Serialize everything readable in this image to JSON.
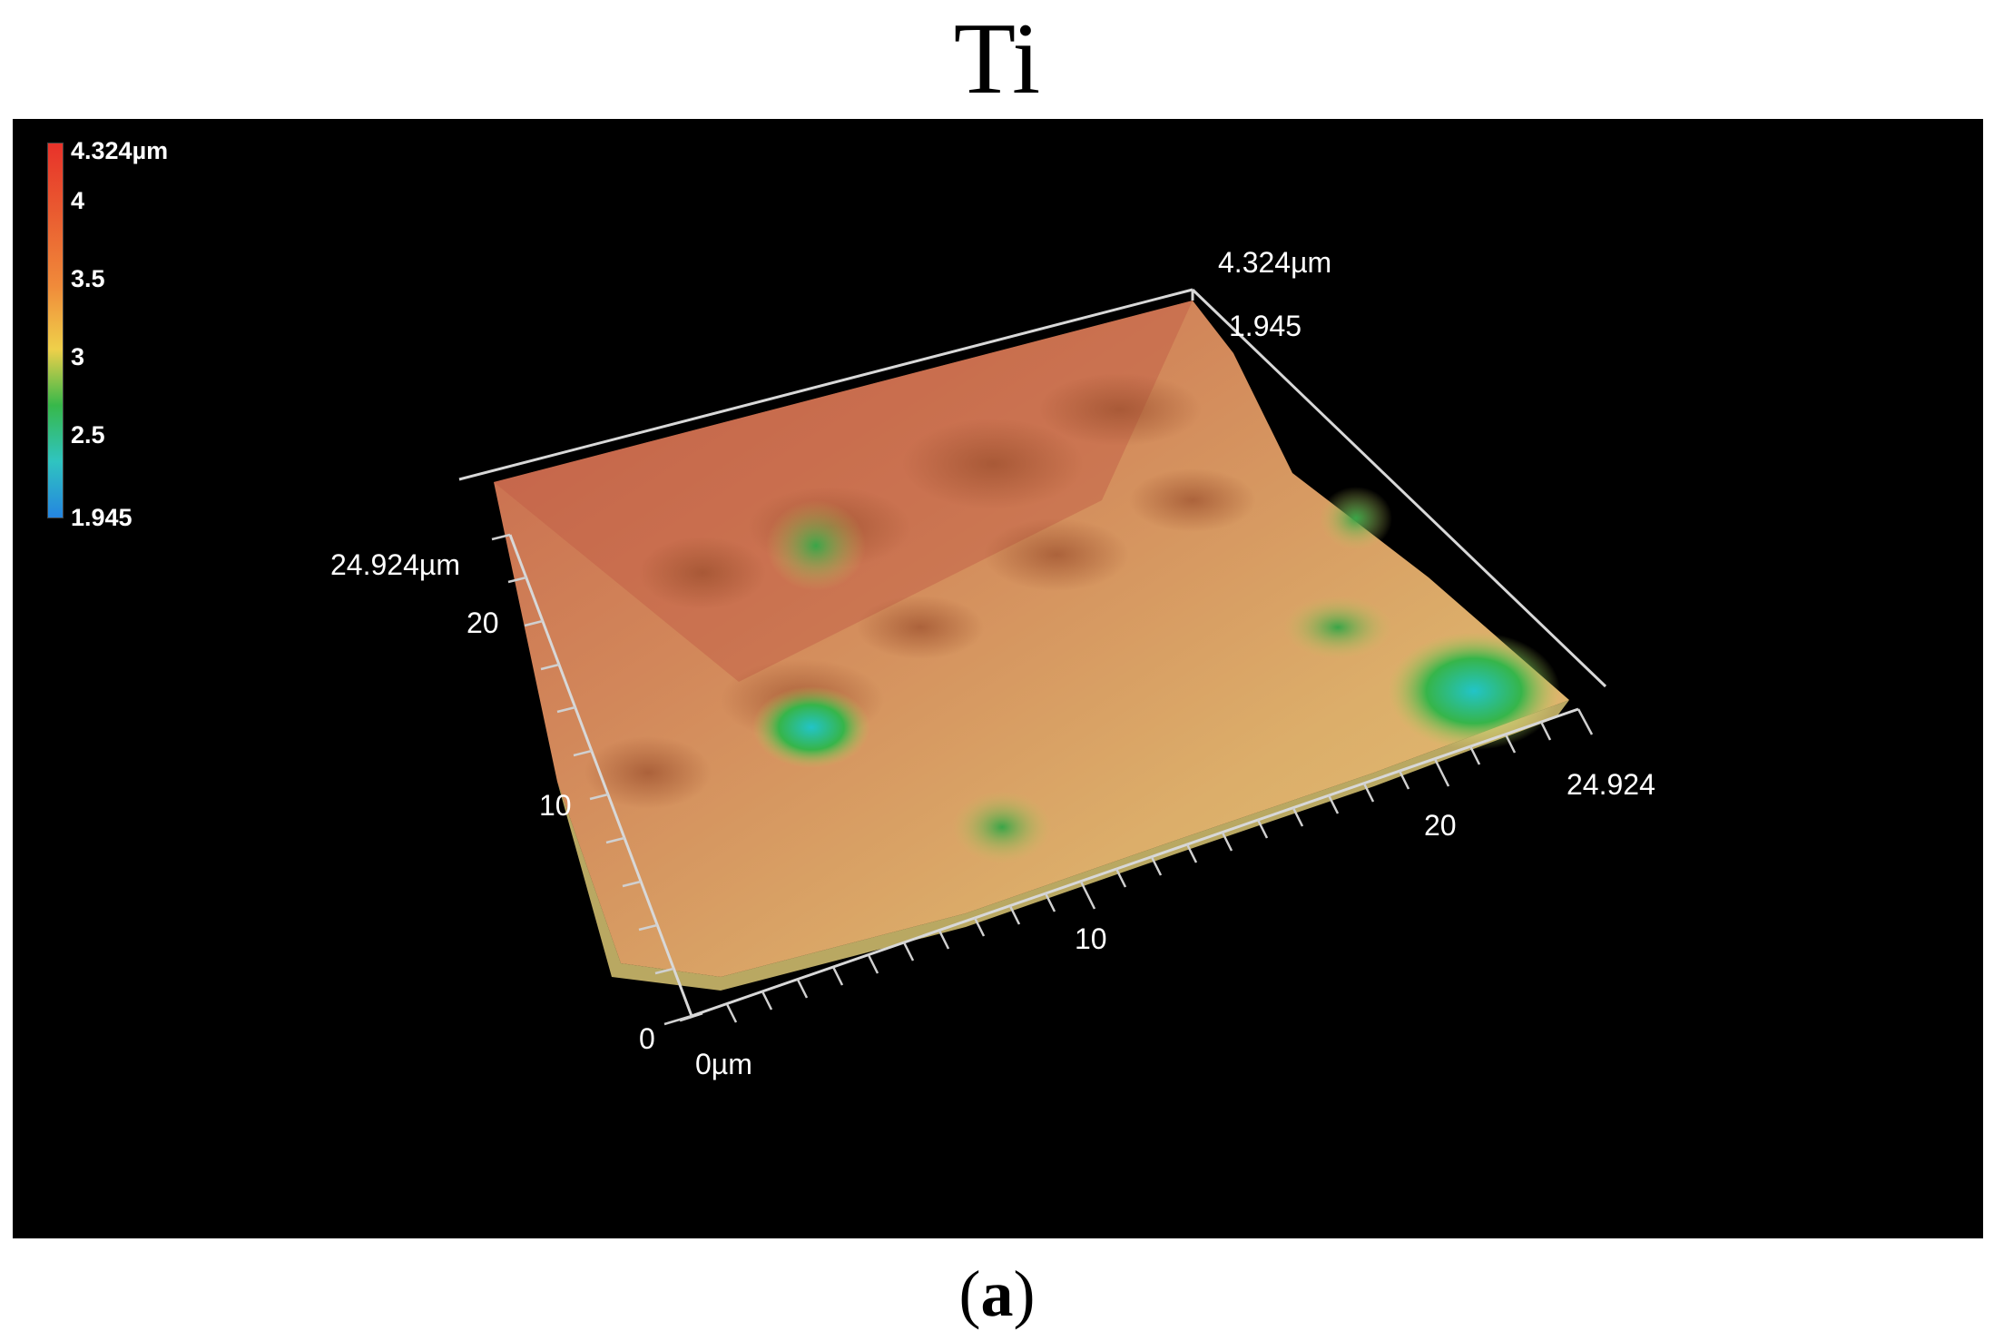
{
  "title": "Ti",
  "colorbar": {
    "labels": [
      "4.324µm",
      "4",
      "3.5",
      "3",
      "2.5",
      "1.945"
    ],
    "max": 4.324,
    "min": 1.945,
    "colors": [
      "#e8322a",
      "#f08a3a",
      "#efd04a",
      "#37b84a",
      "#2fc4c0",
      "#2585e0"
    ]
  },
  "axes": {
    "z_top": "4.324µm",
    "z_bottom": "1.945",
    "y_max": "24.924µm",
    "y_mid": "20",
    "y_ten": "10",
    "y_zero": "0",
    "x_zero": "0µm",
    "x_ten": "10",
    "x_twenty": "20",
    "x_max": "24.924"
  },
  "caption": {
    "open": "(",
    "letter": "a",
    "close": ")"
  }
}
